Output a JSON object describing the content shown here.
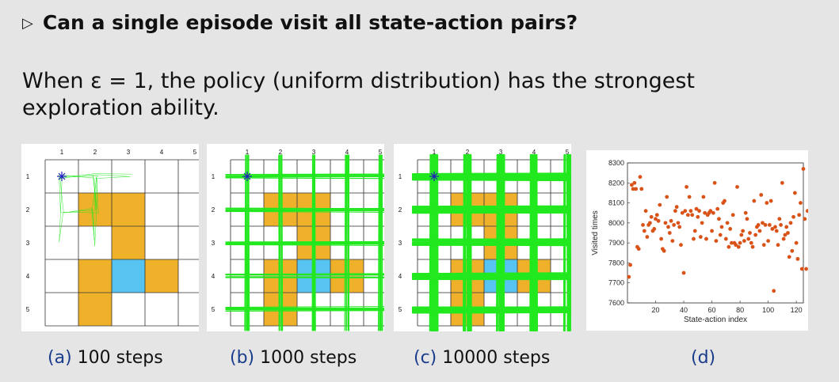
{
  "heading": "Can a single episode visit all state-action pairs?",
  "body_text": "When ε = 1, the policy (uniform distribution) has the strongest exploration ability.",
  "grid": {
    "col_labels": [
      "1",
      "2",
      "3",
      "4",
      "5"
    ],
    "row_labels": [
      "1",
      "2",
      "3",
      "4",
      "5"
    ],
    "orange": [
      [
        2,
        2
      ],
      [
        2,
        3
      ],
      [
        3,
        3
      ],
      [
        4,
        2
      ],
      [
        4,
        4
      ],
      [
        5,
        2
      ]
    ],
    "blue": [
      [
        4,
        3
      ]
    ],
    "colors": {
      "orange": "#EFB12A",
      "blue": "#56C3F0",
      "path": "#22E81F",
      "start": "#1E1EBE"
    }
  },
  "panels": [
    {
      "label": "(a)",
      "caption": "100 steps",
      "density": "low"
    },
    {
      "label": "(b)",
      "caption": "1000 steps",
      "density": "medium"
    },
    {
      "label": "(c)",
      "caption": "10000 steps",
      "density": "high"
    }
  ],
  "scatter_caption": "(d)",
  "chart_data": {
    "type": "scatter",
    "xlabel": "State-action index",
    "ylabel": "Visited times",
    "xlim": [
      0,
      125
    ],
    "ylim": [
      7600,
      8300
    ],
    "xticks": [
      20,
      40,
      60,
      80,
      100,
      120
    ],
    "yticks": [
      7600,
      7700,
      7800,
      7900,
      8000,
      8100,
      8200,
      8300
    ],
    "color": "#D95319",
    "y": [
      7730,
      7790,
      8190,
      8170,
      8200,
      8170,
      7880,
      7870,
      8230,
      8170,
      7990,
      7960,
      8060,
      7930,
      7990,
      8000,
      8030,
      7960,
      7970,
      8020,
      8040,
      8010,
      8090,
      7920,
      7870,
      7860,
      8000,
      8130,
      7980,
      7950,
      8010,
      7910,
      7990,
      8060,
      8080,
      8000,
      7980,
      7890,
      8050,
      7750,
      8060,
      8180,
      8040,
      8130,
      8060,
      8040,
      7920,
      7960,
      8070,
      8030,
      8060,
      7930,
      8000,
      8130,
      8050,
      7920,
      8040,
      8050,
      8060,
      7960,
      8050,
      8200,
      7910,
      8070,
      8020,
      7940,
      7980,
      8100,
      8110,
      7920,
      8000,
      7880,
      7970,
      7900,
      8040,
      7900,
      7890,
      8180,
      7880,
      7900,
      7940,
      7960,
      7910,
      8050,
      8020,
      7920,
      7950,
      7900,
      7880,
      8110,
      7940,
      7980,
      7990,
      7960,
      8140,
      8000,
      7890,
      7990,
      8100,
      7910,
      7990,
      8110,
      7970,
      7660,
      7980,
      7960,
      7890,
      8020,
      7990,
      8200,
      7920,
      7940,
      7980,
      7950,
      7830,
      8000,
      7860,
      8030,
      8150,
      7900,
      7820,
      8040,
      8100,
      7770,
      8270,
      8020,
      7770,
      8060
    ]
  }
}
